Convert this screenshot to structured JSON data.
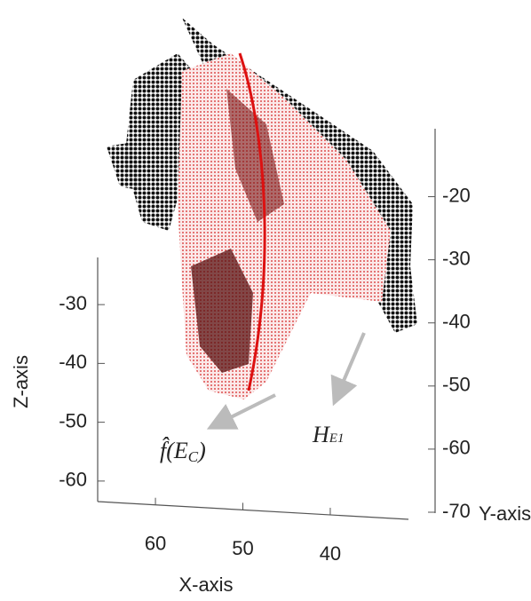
{
  "chart_data": {
    "type": "scatter3d",
    "xlabel": "X-axis",
    "ylabel": "Y-axis",
    "zlabel": "Z-axis",
    "xlim": [
      66,
      34
    ],
    "xticks": [
      60,
      50,
      40
    ],
    "ylim": [
      -70,
      -15
    ],
    "yticks": [
      -20,
      -30,
      -40,
      -50,
      -60,
      -70
    ],
    "zlim": [
      -65,
      -25
    ],
    "zticks": [
      -30,
      -40,
      -50,
      -60
    ],
    "annotations": [
      {
        "base": "f̂(E",
        "subscript": "C",
        "tail": ")"
      },
      {
        "base": "H",
        "subscript": "E1"
      }
    ]
  }
}
